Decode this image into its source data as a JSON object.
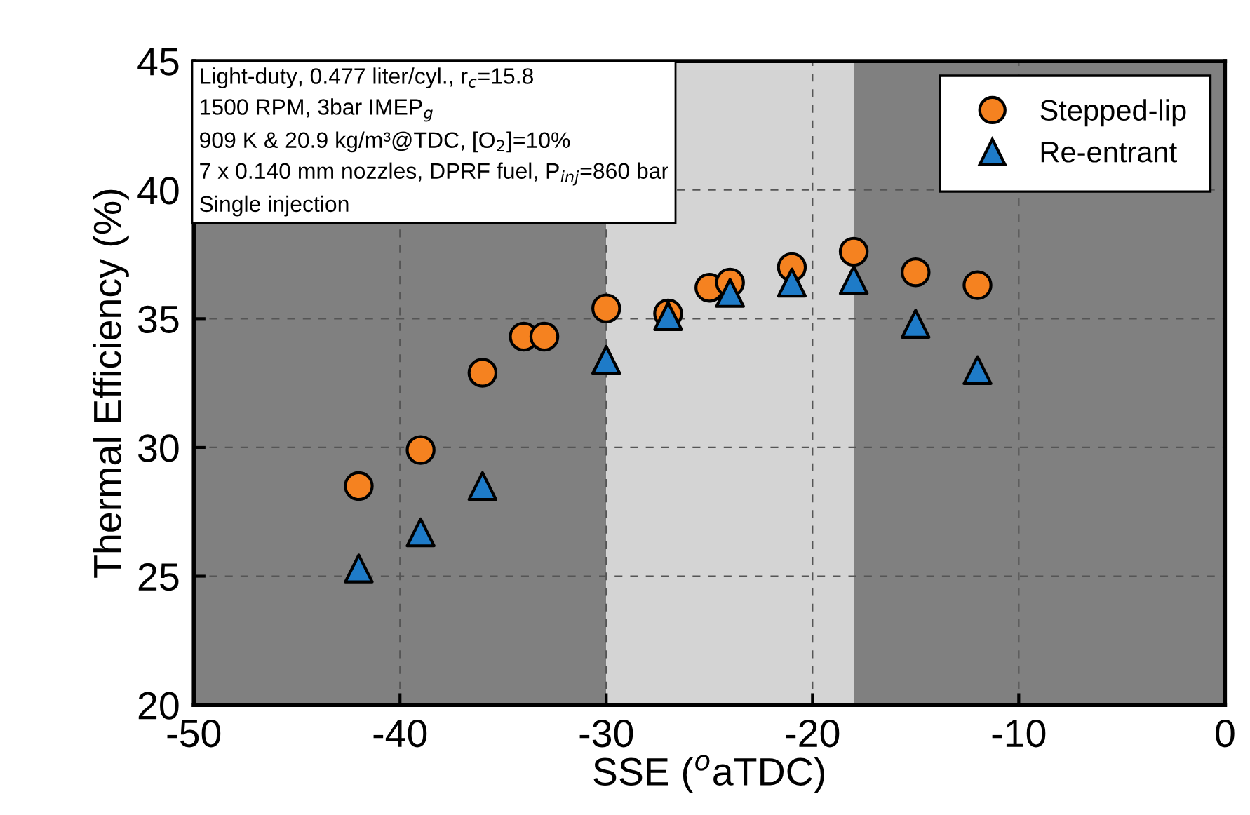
{
  "chart_data": {
    "type": "scatter",
    "xlabel": "SSE ($^{o}$aTDC)",
    "ylabel": "Thermal Efficiency (%)",
    "xlim": [
      -50,
      0
    ],
    "xticks": [
      -50,
      -40,
      -30,
      -20,
      -10,
      0
    ],
    "ylim": [
      20,
      45
    ],
    "yticks": [
      20,
      25,
      30,
      35,
      40,
      45
    ],
    "grid": true,
    "legend": "top right",
    "bands": [
      {
        "axis": "x",
        "from": -50,
        "to": -30,
        "label": null,
        "color": "#808080"
      },
      {
        "axis": "x",
        "from": -30,
        "to": -18,
        "label": null,
        "color": "#d4d4d4"
      },
      {
        "axis": "x",
        "from": -18,
        "to": 0,
        "label": null,
        "color": "#808080"
      }
    ],
    "annotations": [
      "Light-duty, 0.477 liter/cyl., r$_{c}$=15.8\n1500 RPM, 3bar IMEP$_{g}$\n909 K & 20.9 kg/m³@TDC, [O$_{2}$]=10%\n7 x 0.140 mm nozzles, DPRF fuel, P$_{inj}$=860 bar\nSingle injection"
    ],
    "series": [
      {
        "name": "Stepped-lip",
        "color": "#f58220",
        "marker": "circle",
        "x": [
          -42,
          -39,
          -36,
          -34,
          -33,
          -30,
          -27,
          -25,
          -24,
          -21,
          -18,
          -15,
          -12
        ],
        "values": [
          28.5,
          29.9,
          32.9,
          34.3,
          34.3,
          35.4,
          35.2,
          36.2,
          36.4,
          37.0,
          37.6,
          36.8,
          36.3
        ]
      },
      {
        "name": "Re-entrant",
        "color": "#1e7bc8",
        "marker": "triangle",
        "x": [
          -42,
          -39,
          -36,
          -30,
          -27,
          -24,
          -21,
          -18,
          -15,
          -12
        ],
        "values": [
          25.3,
          26.7,
          28.5,
          33.4,
          35.1,
          36.0,
          36.4,
          36.5,
          34.8,
          33.0
        ]
      }
    ]
  }
}
